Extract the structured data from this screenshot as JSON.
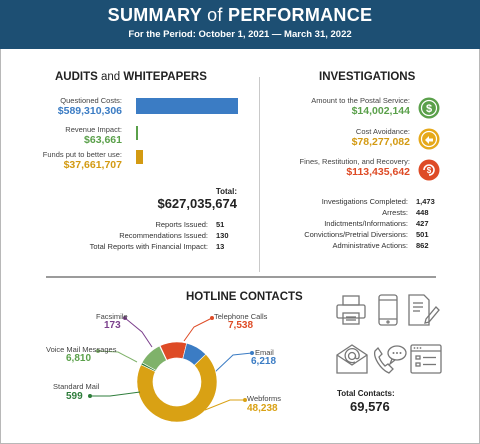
{
  "header": {
    "title_main": "SUMMARY",
    "title_of": "of",
    "title_end": "PERFORMANCE",
    "subtitle": "For the Period: October 1, 2021 — March 31, 2022"
  },
  "audits": {
    "title_main": "AUDITS",
    "title_and": "and",
    "title_end": "WHITEPAPERS",
    "items": [
      {
        "label": "Questioned Costs:",
        "value": "$589,310,306",
        "amount": 589310306,
        "color": "#3b7cc4"
      },
      {
        "label": "Revenue Impact:",
        "value": "$63,661",
        "amount": 63661,
        "color": "#5aa04a"
      },
      {
        "label": "Funds put to better use:",
        "value": "$37,661,707",
        "amount": 37661707,
        "color": "#d39a12"
      }
    ],
    "total_label": "Total:",
    "total_value": "$627,035,674",
    "stats": [
      {
        "label": "Reports Issued:",
        "value": "51"
      },
      {
        "label": "Recommendations Issued:",
        "value": "130"
      },
      {
        "label": "Total Reports with Financial Impact:",
        "value": "13"
      }
    ]
  },
  "investigations": {
    "title": "INVESTIGATIONS",
    "items": [
      {
        "label": "Amount to the Postal Service:",
        "value": "$14,002,144",
        "color": "#5aa04a",
        "icon": "dollar-coin-icon"
      },
      {
        "label": "Cost Avoidance:",
        "value": "$78,277,082",
        "color": "#e6a91a",
        "icon": "savings-coin-icon"
      },
      {
        "label": "Fines, Restitution, and Recovery:",
        "value": "$113,435,642",
        "color": "#de4b26",
        "icon": "recovery-coin-icon"
      }
    ],
    "stats": [
      {
        "label": "Investigations Completed:",
        "value": "1,473"
      },
      {
        "label": "Arrests:",
        "value": "448"
      },
      {
        "label": "Indictments/Informations:",
        "value": "427"
      },
      {
        "label": "Convictions/Pretrial Diversions:",
        "value": "501"
      },
      {
        "label": "Administrative Actions:",
        "value": "862"
      }
    ]
  },
  "hotline": {
    "title": "HOTLINE CONTACTS",
    "total_label": "Total Contacts:",
    "total_value": "69,576",
    "icons": [
      "printer-icon",
      "mobile-phone-icon",
      "document-edit-icon",
      "email-icon",
      "phone-chat-icon",
      "web-form-icon"
    ]
  },
  "chart_data": {
    "type": "pie",
    "variant": "donut",
    "title": "HOTLINE CONTACTS",
    "categories": [
      "Telephone Calls",
      "Email",
      "Webforms",
      "Standard Mail",
      "Voice Mail Messages",
      "Facsimile"
    ],
    "values": [
      7538,
      6218,
      48238,
      599,
      6810,
      173
    ],
    "labels": [
      "7,538",
      "6,218",
      "48,238",
      "599",
      "6,810",
      "173"
    ],
    "colors": [
      "#de4b26",
      "#3b7cc4",
      "#d9a114",
      "#2e7d3b",
      "#7fb26a",
      "#7b3f8c"
    ]
  }
}
